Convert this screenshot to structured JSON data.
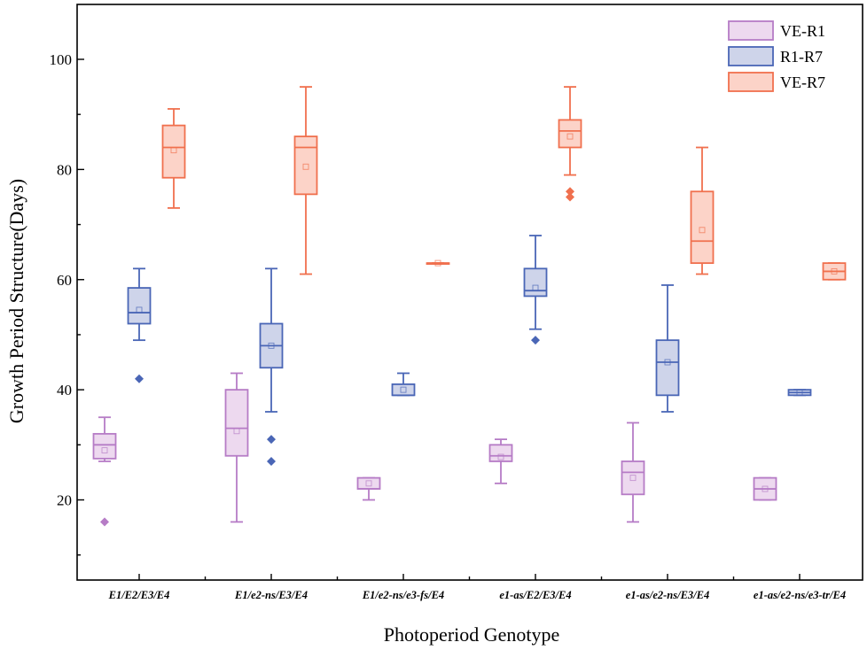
{
  "chart_data": {
    "type": "box",
    "title": "",
    "xlabel": "Photoperiod Genotype",
    "ylabel": "Growth Period Structure(Days)",
    "ylim": [
      7,
      110
    ],
    "yticks": [
      20,
      40,
      60,
      80,
      100
    ],
    "grid": false,
    "legend_position": "top-right",
    "categories": [
      "E1/E2/E3/E4",
      "E1/e2-ns/E3/E4",
      "E1/e2-ns/e3-fs/E4",
      "e1-as/E2/E3/E4",
      "e1-as/e2-ns/E3/E4",
      "e1-as/e2-ns/e3-tr/E4"
    ],
    "series": [
      {
        "name": "VE-R1",
        "stroke": "#b67cc6",
        "fill": "#edd9ef",
        "boxes": [
          {
            "q1": 27.5,
            "median": 30,
            "q3": 32,
            "whisker_low": 27,
            "whisker_high": 35,
            "mean": 29,
            "outliers": [
              16
            ]
          },
          {
            "q1": 28,
            "median": 33,
            "q3": 40,
            "whisker_low": 16,
            "whisker_high": 43,
            "mean": 32.5,
            "outliers": []
          },
          {
            "q1": 22,
            "median": 22,
            "q3": 24,
            "whisker_low": 20,
            "whisker_high": 24,
            "mean": 23,
            "outliers": []
          },
          {
            "q1": 27,
            "median": 28,
            "q3": 30,
            "whisker_low": 23,
            "whisker_high": 31,
            "mean": 27.8,
            "outliers": []
          },
          {
            "q1": 21,
            "median": 25,
            "q3": 27,
            "whisker_low": 16,
            "whisker_high": 34,
            "mean": 24,
            "outliers": []
          },
          {
            "q1": 20,
            "median": 22,
            "q3": 24,
            "whisker_low": 20,
            "whisker_high": 24,
            "mean": 22,
            "outliers": []
          }
        ]
      },
      {
        "name": "R1-R7",
        "stroke": "#4a66b6",
        "fill": "#ced4ea",
        "boxes": [
          {
            "q1": 52,
            "median": 54,
            "q3": 58.5,
            "whisker_low": 49,
            "whisker_high": 62,
            "mean": 54.5,
            "outliers": [
              42
            ]
          },
          {
            "q1": 44,
            "median": 48,
            "q3": 52,
            "whisker_low": 36,
            "whisker_high": 62,
            "mean": 48,
            "outliers": [
              31,
              27
            ]
          },
          {
            "q1": 39,
            "median": 39,
            "q3": 41,
            "whisker_low": 39,
            "whisker_high": 43,
            "mean": 40,
            "outliers": []
          },
          {
            "q1": 57,
            "median": 58,
            "q3": 62,
            "whisker_low": 51,
            "whisker_high": 68,
            "mean": 58.5,
            "outliers": [
              49
            ]
          },
          {
            "q1": 39,
            "median": 45,
            "q3": 49,
            "whisker_low": 36,
            "whisker_high": 59,
            "mean": 45,
            "outliers": []
          },
          {
            "q1": 39,
            "median": 39.5,
            "q3": 40,
            "whisker_low": 39,
            "whisker_high": 40,
            "mean": 39.5,
            "outliers": []
          }
        ]
      },
      {
        "name": "VE-R7",
        "stroke": "#f0704e",
        "fill": "#fcd3c8",
        "boxes": [
          {
            "q1": 78.5,
            "median": 84,
            "q3": 88,
            "whisker_low": 73,
            "whisker_high": 91,
            "mean": 83.5,
            "outliers": []
          },
          {
            "q1": 75.5,
            "median": 84,
            "q3": 86,
            "whisker_low": 61,
            "whisker_high": 95,
            "mean": 80.5,
            "outliers": []
          },
          {
            "q1": 63,
            "median": 63,
            "q3": 63,
            "whisker_low": 63,
            "whisker_high": 63,
            "mean": 63,
            "outliers": []
          },
          {
            "q1": 84,
            "median": 87,
            "q3": 89,
            "whisker_low": 79,
            "whisker_high": 95,
            "mean": 86,
            "outliers": [
              76,
              75
            ]
          },
          {
            "q1": 63,
            "median": 67,
            "q3": 76,
            "whisker_low": 61,
            "whisker_high": 84,
            "mean": 69,
            "outliers": []
          },
          {
            "q1": 60,
            "median": 61.5,
            "q3": 63,
            "whisker_low": 60,
            "whisker_high": 63,
            "mean": 61.5,
            "outliers": []
          }
        ]
      }
    ]
  }
}
